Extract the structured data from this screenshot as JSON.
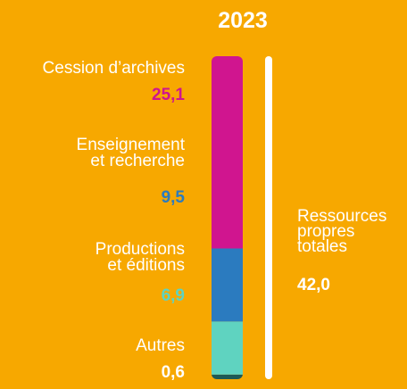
{
  "chart_data": {
    "type": "stacked_bar",
    "title": "2023",
    "ylim": [
      0,
      42
    ],
    "series": [
      {
        "name": "Cession d’archives",
        "color": "#d0158f",
        "label_color": "#d0158f",
        "values": [
          25.1
        ],
        "value_labels": [
          "25,1"
        ]
      },
      {
        "name": "Enseignement\net recherche",
        "color": "#2b7bbf",
        "label_color": "#2b7bbf",
        "values": [
          9.5
        ],
        "value_labels": [
          "9,5"
        ]
      },
      {
        "name": "Productions\net éditions",
        "color": "#5fd3c0",
        "label_color": "#5fd3c0",
        "values": [
          6.9
        ],
        "value_labels": [
          "6,9"
        ]
      },
      {
        "name": "Autres",
        "color": "#1e5a55",
        "label_color": "#ffffff",
        "values": [
          0.6
        ],
        "value_labels": [
          "0,6"
        ]
      }
    ],
    "total": {
      "label": "Ressources\npropres\ntotales",
      "value": 42,
      "value_label": "42,0"
    }
  }
}
